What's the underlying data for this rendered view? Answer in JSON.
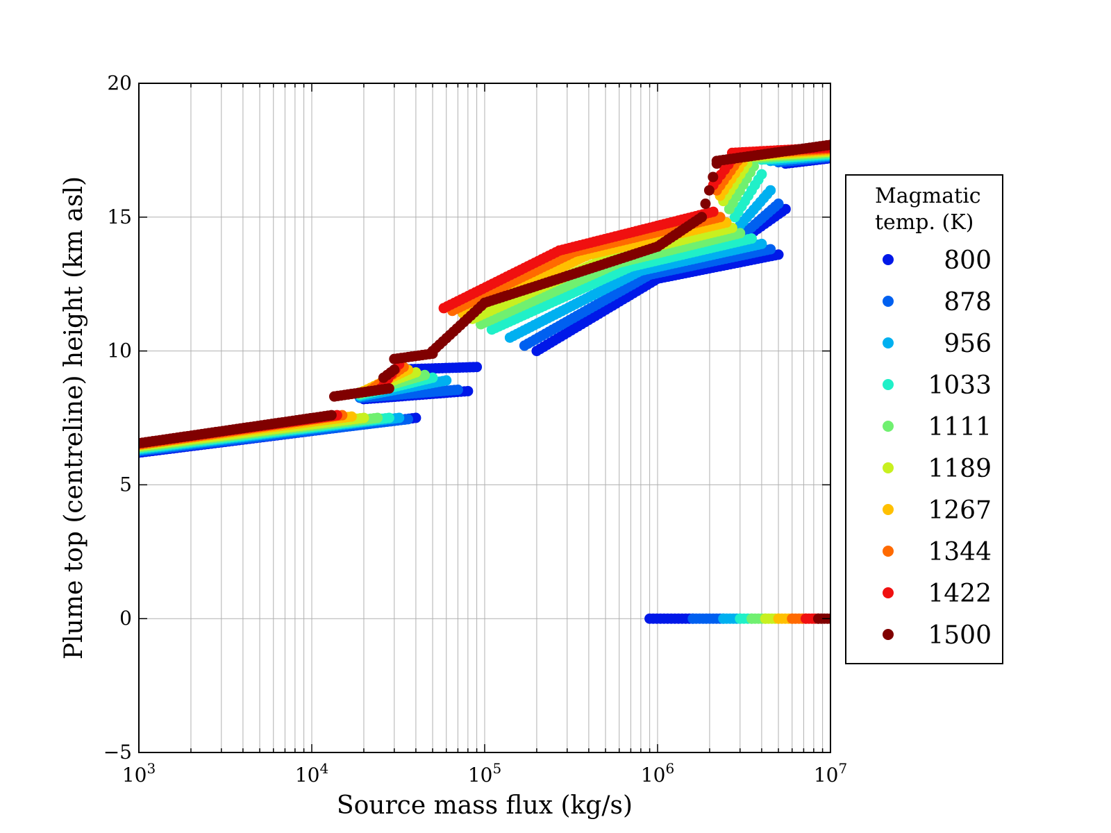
{
  "chart_data": {
    "type": "scatter",
    "title": "",
    "xlabel": "Source mass flux (kg/s)",
    "ylabel": "Plume top (centreline) height (km asl)",
    "xscale": "log",
    "xlim": [
      1000,
      10000000
    ],
    "ylim": [
      -5,
      20
    ],
    "grid": true,
    "x_ticks": [
      {
        "value": 1000,
        "base": "10",
        "exp": "3"
      },
      {
        "value": 10000,
        "base": "10",
        "exp": "4"
      },
      {
        "value": 100000,
        "base": "10",
        "exp": "5"
      },
      {
        "value": 1000000,
        "base": "10",
        "exp": "6"
      },
      {
        "value": 10000000,
        "base": "10",
        "exp": "7"
      }
    ],
    "y_ticks": [
      {
        "value": -5,
        "label": "−5"
      },
      {
        "value": 0,
        "label": "0"
      },
      {
        "value": 5,
        "label": "5"
      },
      {
        "value": 10,
        "label": "10"
      },
      {
        "value": 15,
        "label": "15"
      },
      {
        "value": 20,
        "label": "20"
      }
    ],
    "legend": {
      "title_lines": [
        "Magmatic",
        "temp. (K)"
      ],
      "placement": "outside-right"
    },
    "series": [
      {
        "name": "800",
        "color": "#0018e8",
        "segments": [
          {
            "x_start": 1000,
            "x_end": 40000,
            "y_start": 6.2,
            "y_end": 7.5
          },
          {
            "x_start": 20000,
            "x_end": 80000,
            "y_start": 8.2,
            "y_end": 8.5
          },
          {
            "x_start": 30000,
            "x_end": 90000,
            "y_start": 9.3,
            "y_end": 9.4
          },
          {
            "x_start": 200000,
            "x_end": 1000000,
            "y_start": 10.0,
            "y_end": 12.7
          },
          {
            "x_start": 1000000,
            "x_end": 5000000,
            "y_start": 12.7,
            "y_end": 13.6
          },
          {
            "x_start": 3000000,
            "x_end": 5500000,
            "y_start": 14.1,
            "y_end": 15.3
          },
          {
            "x_start": 5500000,
            "x_end": 10000000,
            "y_start": 17.0,
            "y_end": 17.2
          },
          {
            "x_start": 900000,
            "x_end": 1600000,
            "y_start": 0,
            "y_end": 0
          }
        ]
      },
      {
        "name": "878",
        "color": "#0060f0",
        "segments": [
          {
            "x_start": 1000,
            "x_end": 36000,
            "y_start": 6.25,
            "y_end": 7.45
          },
          {
            "x_start": 19000,
            "x_end": 70000,
            "y_start": 8.25,
            "y_end": 8.55
          },
          {
            "x_start": 170000,
            "x_end": 900000,
            "y_start": 10.2,
            "y_end": 12.85
          },
          {
            "x_start": 900000,
            "x_end": 4500000,
            "y_start": 12.85,
            "y_end": 13.8
          },
          {
            "x_start": 3200000,
            "x_end": 5000000,
            "y_start": 14.4,
            "y_end": 15.5
          },
          {
            "x_start": 5000000,
            "x_end": 10000000,
            "y_start": 17.05,
            "y_end": 17.25
          },
          {
            "x_start": 1600000,
            "x_end": 2400000,
            "y_start": 0,
            "y_end": 0
          }
        ]
      },
      {
        "name": "956",
        "color": "#00b0f0",
        "segments": [
          {
            "x_start": 1000,
            "x_end": 32000,
            "y_start": 6.3,
            "y_end": 7.5
          },
          {
            "x_start": 19000,
            "x_end": 60000,
            "y_start": 8.3,
            "y_end": 8.9
          },
          {
            "x_start": 140000,
            "x_end": 800000,
            "y_start": 10.5,
            "y_end": 13.0
          },
          {
            "x_start": 800000,
            "x_end": 4000000,
            "y_start": 13.0,
            "y_end": 14.0
          },
          {
            "x_start": 3000000,
            "x_end": 4500000,
            "y_start": 14.7,
            "y_end": 16.0
          },
          {
            "x_start": 4500000,
            "x_end": 10000000,
            "y_start": 17.1,
            "y_end": 17.3
          },
          {
            "x_start": 2400000,
            "x_end": 3000000,
            "y_start": 0,
            "y_end": 0
          }
        ]
      },
      {
        "name": "1033",
        "color": "#20f0c8",
        "segments": [
          {
            "x_start": 1000,
            "x_end": 28000,
            "y_start": 6.35,
            "y_end": 7.5
          },
          {
            "x_start": 19000,
            "x_end": 50000,
            "y_start": 8.35,
            "y_end": 9.0
          },
          {
            "x_start": 110000,
            "x_end": 700000,
            "y_start": 10.8,
            "y_end": 13.15
          },
          {
            "x_start": 700000,
            "x_end": 3500000,
            "y_start": 13.15,
            "y_end": 14.2
          },
          {
            "x_start": 2800000,
            "x_end": 4000000,
            "y_start": 15.0,
            "y_end": 16.6
          },
          {
            "x_start": 4000000,
            "x_end": 10000000,
            "y_start": 17.15,
            "y_end": 17.35
          },
          {
            "x_start": 3000000,
            "x_end": 3500000,
            "y_start": 0,
            "y_end": 0
          }
        ]
      },
      {
        "name": "1111",
        "color": "#70f070",
        "segments": [
          {
            "x_start": 1000,
            "x_end": 24000,
            "y_start": 6.4,
            "y_end": 7.5
          },
          {
            "x_start": 19000,
            "x_end": 45000,
            "y_start": 8.4,
            "y_end": 9.1
          },
          {
            "x_start": 95000,
            "x_end": 600000,
            "y_start": 11.0,
            "y_end": 13.3
          },
          {
            "x_start": 600000,
            "x_end": 3000000,
            "y_start": 13.3,
            "y_end": 14.4
          },
          {
            "x_start": 2600000,
            "x_end": 3600000,
            "y_start": 15.3,
            "y_end": 16.9
          },
          {
            "x_start": 3600000,
            "x_end": 10000000,
            "y_start": 17.2,
            "y_end": 17.4
          },
          {
            "x_start": 3500000,
            "x_end": 4200000,
            "y_start": 0,
            "y_end": 0
          }
        ]
      },
      {
        "name": "1189",
        "color": "#c8f020",
        "segments": [
          {
            "x_start": 1000,
            "x_end": 20000,
            "y_start": 6.45,
            "y_end": 7.5
          },
          {
            "x_start": 19000,
            "x_end": 40000,
            "y_start": 8.45,
            "y_end": 9.2
          },
          {
            "x_start": 85000,
            "x_end": 500000,
            "y_start": 11.2,
            "y_end": 13.45
          },
          {
            "x_start": 500000,
            "x_end": 2700000,
            "y_start": 13.45,
            "y_end": 14.6
          },
          {
            "x_start": 2400000,
            "x_end": 3300000,
            "y_start": 15.6,
            "y_end": 17.0
          },
          {
            "x_start": 3300000,
            "x_end": 10000000,
            "y_start": 17.25,
            "y_end": 17.45
          },
          {
            "x_start": 4200000,
            "x_end": 5000000,
            "y_start": 0,
            "y_end": 0
          }
        ]
      },
      {
        "name": "1267",
        "color": "#ffc000",
        "segments": [
          {
            "x_start": 1000,
            "x_end": 17000,
            "y_start": 6.5,
            "y_end": 7.55
          },
          {
            "x_start": 20000,
            "x_end": 36000,
            "y_start": 8.5,
            "y_end": 9.3
          },
          {
            "x_start": 75000,
            "x_end": 400000,
            "y_start": 11.4,
            "y_end": 13.6
          },
          {
            "x_start": 400000,
            "x_end": 2500000,
            "y_start": 13.6,
            "y_end": 14.8
          },
          {
            "x_start": 2300000,
            "x_end": 3100000,
            "y_start": 15.8,
            "y_end": 17.05
          },
          {
            "x_start": 3100000,
            "x_end": 10000000,
            "y_start": 17.3,
            "y_end": 17.5
          },
          {
            "x_start": 5000000,
            "x_end": 6000000,
            "y_start": 0,
            "y_end": 0
          }
        ]
      },
      {
        "name": "1344",
        "color": "#ff6a00",
        "segments": [
          {
            "x_start": 1000,
            "x_end": 15000,
            "y_start": 6.5,
            "y_end": 7.6
          },
          {
            "x_start": 22000,
            "x_end": 34000,
            "y_start": 8.55,
            "y_end": 9.4
          },
          {
            "x_start": 65000,
            "x_end": 330000,
            "y_start": 11.5,
            "y_end": 13.7
          },
          {
            "x_start": 330000,
            "x_end": 2300000,
            "y_start": 13.7,
            "y_end": 15.0
          },
          {
            "x_start": 2200000,
            "x_end": 2900000,
            "y_start": 16.0,
            "y_end": 17.1
          },
          {
            "x_start": 2900000,
            "x_end": 10000000,
            "y_start": 17.35,
            "y_end": 17.55
          },
          {
            "x_start": 6000000,
            "x_end": 7200000,
            "y_start": 0,
            "y_end": 0
          }
        ]
      },
      {
        "name": "1422",
        "color": "#f01010",
        "segments": [
          {
            "x_start": 1000,
            "x_end": 14000,
            "y_start": 6.55,
            "y_end": 7.6
          },
          {
            "x_start": 25000,
            "x_end": 32000,
            "y_start": 8.6,
            "y_end": 9.5
          },
          {
            "x_start": 58000,
            "x_end": 270000,
            "y_start": 11.6,
            "y_end": 13.75
          },
          {
            "x_start": 270000,
            "x_end": 2100000,
            "y_start": 13.75,
            "y_end": 15.2
          },
          {
            "x_start": 2100000,
            "x_end": 2700000,
            "y_start": 16.2,
            "y_end": 17.15
          },
          {
            "x_start": 2700000,
            "x_end": 10000000,
            "y_start": 17.4,
            "y_end": 17.6
          },
          {
            "x_start": 7200000,
            "x_end": 8500000,
            "y_start": 0,
            "y_end": 0
          }
        ]
      },
      {
        "name": "1500",
        "color": "#800000",
        "segments": [
          {
            "x_start": 1000,
            "x_end": 13000,
            "y_start": 6.55,
            "y_end": 7.6
          },
          {
            "x_start": 13500,
            "x_end": 28000,
            "y_start": 8.3,
            "y_end": 8.6
          },
          {
            "x_start": 26000,
            "x_end": 30000,
            "y_start": 9.0,
            "y_end": 9.3
          },
          {
            "x_start": 30000,
            "x_end": 50000,
            "y_start": 9.7,
            "y_end": 9.9
          },
          {
            "x_start": 50000,
            "x_end": 100000,
            "y_start": 10.0,
            "y_end": 11.8
          },
          {
            "x_start": 100000,
            "x_end": 300000,
            "y_start": 11.8,
            "y_end": 12.8
          },
          {
            "x_start": 300000,
            "x_end": 1000000,
            "y_start": 12.8,
            "y_end": 13.9
          },
          {
            "x_start": 1000000,
            "x_end": 1800000,
            "y_start": 13.9,
            "y_end": 15.0
          },
          {
            "x_start": 1800000,
            "x_end": 2200000,
            "y_start": 15.0,
            "y_end": 17.0
          },
          {
            "x_start": 2200000,
            "x_end": 10000000,
            "y_start": 17.1,
            "y_end": 17.7
          },
          {
            "x_start": 8500000,
            "x_end": 10000000,
            "y_start": 0,
            "y_end": 0
          }
        ]
      }
    ]
  }
}
